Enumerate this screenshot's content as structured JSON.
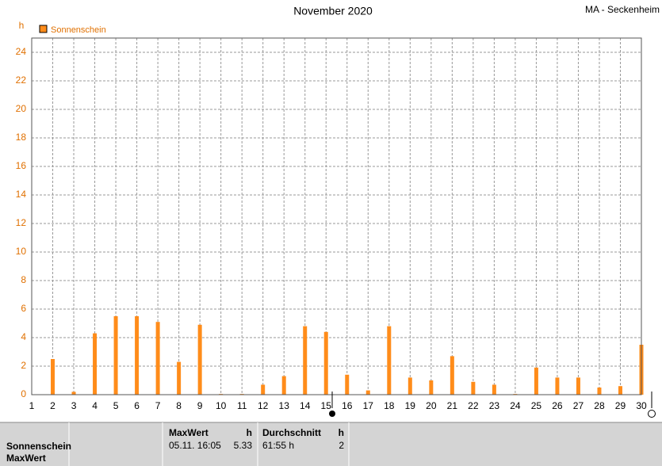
{
  "chart_data": {
    "type": "bar",
    "title": "November 2020",
    "subtitle": "MA - Seckenheim",
    "y_label": "h",
    "x": [
      1,
      2,
      3,
      4,
      5,
      6,
      7,
      8,
      9,
      10,
      11,
      12,
      13,
      14,
      15,
      16,
      17,
      18,
      19,
      20,
      21,
      22,
      23,
      24,
      25,
      26,
      27,
      28,
      29,
      30
    ],
    "series": [
      {
        "name": "Sonnenschein",
        "color": "#ff8c1a",
        "values": [
          0,
          2.5,
          0.2,
          4.3,
          5.5,
          5.5,
          5.1,
          2.3,
          4.9,
          0.05,
          0.05,
          0.7,
          1.3,
          4.8,
          4.4,
          1.4,
          0.3,
          4.8,
          1.2,
          1.0,
          2.7,
          0.9,
          0.7,
          0.05,
          1.9,
          1.2,
          1.2,
          0.5,
          0.6,
          3.5
        ]
      }
    ],
    "xlim": [
      1,
      30
    ],
    "xticks": [
      1,
      2,
      3,
      4,
      5,
      6,
      7,
      8,
      9,
      10,
      11,
      12,
      13,
      14,
      15,
      16,
      17,
      18,
      19,
      20,
      21,
      22,
      23,
      24,
      25,
      26,
      27,
      28,
      29,
      30
    ],
    "ylim": [
      0,
      25
    ],
    "yticks": [
      0,
      2,
      4,
      6,
      8,
      10,
      12,
      14,
      16,
      18,
      20,
      22,
      24
    ],
    "grid": true
  },
  "table": {
    "row_labels": [
      "Sonnenschein",
      "MaxWert"
    ],
    "columns": [
      {
        "header": "MaxWert",
        "unit": "h",
        "cells": [
          "05.11.  16:05",
          "5.33"
        ]
      },
      {
        "header": "Durchschnitt",
        "unit": "h",
        "cells": [
          "61:55 h",
          "2"
        ]
      }
    ]
  }
}
